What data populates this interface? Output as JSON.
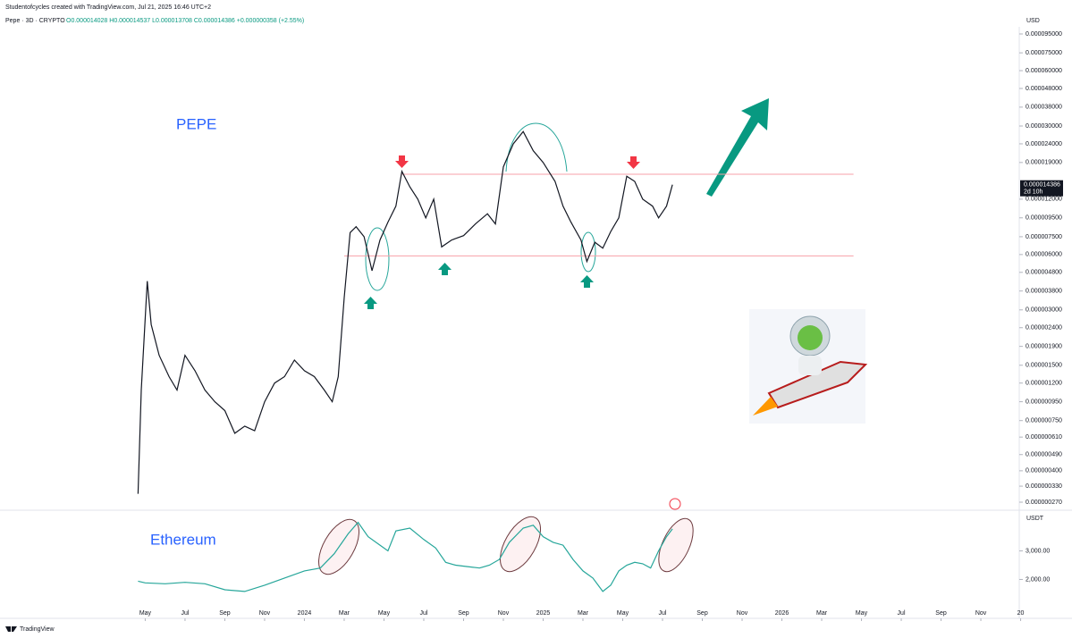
{
  "header": {
    "credit": "Studentofcycles created with TradingView.com, Jul 21, 2025 16:46 UTC+2",
    "symbol": "Pepe · 3D · CRYPTO",
    "ohlc": "O0.000014028 H0.000014537 L0.000013708 C0.000014386 +0.000000358 (+2.55%)"
  },
  "footer": {
    "brand": "TradingView"
  },
  "chart_data": [
    {
      "type": "line",
      "annotation": "PEPE",
      "y_unit": "USD",
      "color": "#131722",
      "log_scale": true,
      "grid": false,
      "xlim": [
        -7.3,
        44.2
      ],
      "ylim": [
        2.7e-07,
        9.5e-05
      ],
      "yticks": [
        {
          "value": 9.5e-05,
          "label": "0.000095000"
        },
        {
          "value": 7.5e-05,
          "label": "0.000075000"
        },
        {
          "value": 6e-05,
          "label": "0.000060000"
        },
        {
          "value": 4.8e-05,
          "label": "0.000048000"
        },
        {
          "value": 3.8e-05,
          "label": "0.000038000"
        },
        {
          "value": 3e-05,
          "label": "0.000030000"
        },
        {
          "value": 2.4e-05,
          "label": "0.000024000"
        },
        {
          "value": 1.9e-05,
          "label": "0.000019000"
        },
        {
          "value": 1.2e-05,
          "label": "0.000012000"
        },
        {
          "value": 9.5e-06,
          "label": "0.000009500"
        },
        {
          "value": 7.5e-06,
          "label": "0.000007500"
        },
        {
          "value": 6e-06,
          "label": "0.000006000"
        },
        {
          "value": 4.8e-06,
          "label": "0.000004800"
        },
        {
          "value": 3.8e-06,
          "label": "0.000003800"
        },
        {
          "value": 3e-06,
          "label": "0.000003000"
        },
        {
          "value": 2.4e-06,
          "label": "0.000002400"
        },
        {
          "value": 1.9e-06,
          "label": "0.000001900"
        },
        {
          "value": 1.5e-06,
          "label": "0.000001500"
        },
        {
          "value": 1.2e-06,
          "label": "0.000001200"
        },
        {
          "value": 9.5e-07,
          "label": "0.000000950"
        },
        {
          "value": 7.5e-07,
          "label": "0.000000750"
        },
        {
          "value": 6.1e-07,
          "label": "0.000000610"
        },
        {
          "value": 4.9e-07,
          "label": "0.000000490"
        },
        {
          "value": 4e-07,
          "label": "0.000000400"
        },
        {
          "value": 3.3e-07,
          "label": "0.000000330"
        },
        {
          "value": 2.7e-07,
          "label": "0.000000270"
        }
      ],
      "last_price": {
        "value": 1.4386e-05,
        "label": "0.000014386",
        "countdown": "2d 10h"
      },
      "levels": [
        {
          "value": 1.64e-05,
          "x": [
            12.9,
            35.6
          ]
        },
        {
          "value": 5.9e-06,
          "x": [
            10.0,
            35.6
          ]
        }
      ],
      "x": [
        -0.36,
        -0.2,
        0.1,
        0.3,
        0.7,
        1.2,
        1.6,
        2.0,
        2.5,
        3.0,
        3.5,
        4.0,
        4.5,
        5.0,
        5.5,
        6.0,
        6.5,
        7.0,
        7.5,
        8.0,
        8.5,
        9.0,
        9.4,
        9.7,
        10.0,
        10.3,
        10.6,
        11.0,
        11.4,
        11.8,
        12.2,
        12.6,
        12.9,
        13.3,
        13.7,
        14.1,
        14.5,
        14.9,
        15.4,
        16.0,
        16.6,
        17.2,
        17.6,
        18.0,
        18.5,
        19.0,
        19.5,
        20.0,
        20.6,
        21.0,
        21.4,
        21.9,
        22.2,
        22.6,
        23.0,
        23.4,
        23.8,
        24.2,
        24.6,
        25.0,
        25.5,
        25.8,
        26.2,
        26.5
      ],
      "values": [
        3e-07,
        1.1e-06,
        4.3e-06,
        2.5e-06,
        1.7e-06,
        1.3e-06,
        1.1e-06,
        1.7e-06,
        1.4e-06,
        1.1e-06,
        9.5e-07,
        8.5e-07,
        6.4e-07,
        7e-07,
        6.6e-07,
        9.5e-07,
        1.2e-06,
        1.3e-06,
        1.6e-06,
        1.4e-06,
        1.3e-06,
        1.1e-06,
        9.5e-07,
        1.3e-06,
        3.5e-06,
        7.9e-06,
        8.5e-06,
        7.5e-06,
        4.9e-06,
        7.2e-06,
        9e-06,
        1.1e-05,
        1.7e-05,
        1.4e-05,
        1.2e-05,
        9.5e-06,
        1.2e-05,
        6.6e-06,
        7.2e-06,
        7.6e-06,
        8.8e-06,
        1e-05,
        8.8e-06,
        1.8e-05,
        2.4e-05,
        2.8e-05,
        2.2e-05,
        1.9e-05,
        1.5e-05,
        1.1e-05,
        9e-06,
        7.2e-06,
        5.5e-06,
        7e-06,
        6.5e-06,
        8e-06,
        9.5e-06,
        1.6e-05,
        1.5e-05,
        1.2e-05,
        1.1e-05,
        9.5e-06,
        1.1e-05,
        1.4386e-05
      ]
    },
    {
      "type": "line",
      "annotation": "Ethereum",
      "y_unit": "USDT",
      "color": "#26a69a",
      "log_scale": false,
      "grid": false,
      "xlim": [
        -7.3,
        44.2
      ],
      "ylim": [
        700,
        4300
      ],
      "yticks": [
        {
          "value": 3000,
          "label": "3,000.00"
        },
        {
          "value": 2000,
          "label": "2,000.00"
        }
      ],
      "xticks": [
        {
          "value": 0,
          "label": "May"
        },
        {
          "value": 2,
          "label": "Jul"
        },
        {
          "value": 4,
          "label": "Sep"
        },
        {
          "value": 6,
          "label": "Nov"
        },
        {
          "value": 8,
          "label": "2024"
        },
        {
          "value": 10,
          "label": "Mar"
        },
        {
          "value": 12,
          "label": "May"
        },
        {
          "value": 14,
          "label": "Jul"
        },
        {
          "value": 16,
          "label": "Sep"
        },
        {
          "value": 18,
          "label": "Nov"
        },
        {
          "value": 20,
          "label": "2025"
        },
        {
          "value": 22,
          "label": "Mar"
        },
        {
          "value": 24,
          "label": "May"
        },
        {
          "value": 26,
          "label": "Jul"
        },
        {
          "value": 28,
          "label": "Sep"
        },
        {
          "value": 30,
          "label": "Nov"
        },
        {
          "value": 32,
          "label": "2026"
        },
        {
          "value": 34,
          "label": "Mar"
        },
        {
          "value": 36,
          "label": "May"
        },
        {
          "value": 38,
          "label": "Jul"
        },
        {
          "value": 40,
          "label": "Sep"
        },
        {
          "value": 42,
          "label": "Nov"
        },
        {
          "value": 44,
          "label": "20"
        }
      ],
      "x": [
        -0.36,
        0,
        1,
        2,
        3,
        4,
        5,
        6,
        7,
        8,
        8.8,
        9.5,
        10.2,
        10.7,
        11.2,
        11.8,
        12.2,
        12.6,
        13.3,
        14,
        14.6,
        15.1,
        15.6,
        16.2,
        16.8,
        17.3,
        17.8,
        18.3,
        19.0,
        19.5,
        20,
        20.5,
        21,
        21.5,
        22,
        22.5,
        23.0,
        23.4,
        23.8,
        24.2,
        24.6,
        25,
        25.4,
        25.8,
        26.2,
        26.5
      ],
      "values": [
        1940,
        1880,
        1850,
        1900,
        1850,
        1640,
        1580,
        1800,
        2050,
        2300,
        2400,
        2900,
        3600,
        4000,
        3500,
        3200,
        3000,
        3700,
        3800,
        3400,
        3100,
        2600,
        2500,
        2450,
        2400,
        2500,
        2700,
        3300,
        3800,
        3900,
        3500,
        3300,
        3200,
        2700,
        2300,
        2050,
        1580,
        1800,
        2300,
        2500,
        2600,
        2550,
        2400,
        3000,
        3500,
        3770
      ]
    }
  ]
}
